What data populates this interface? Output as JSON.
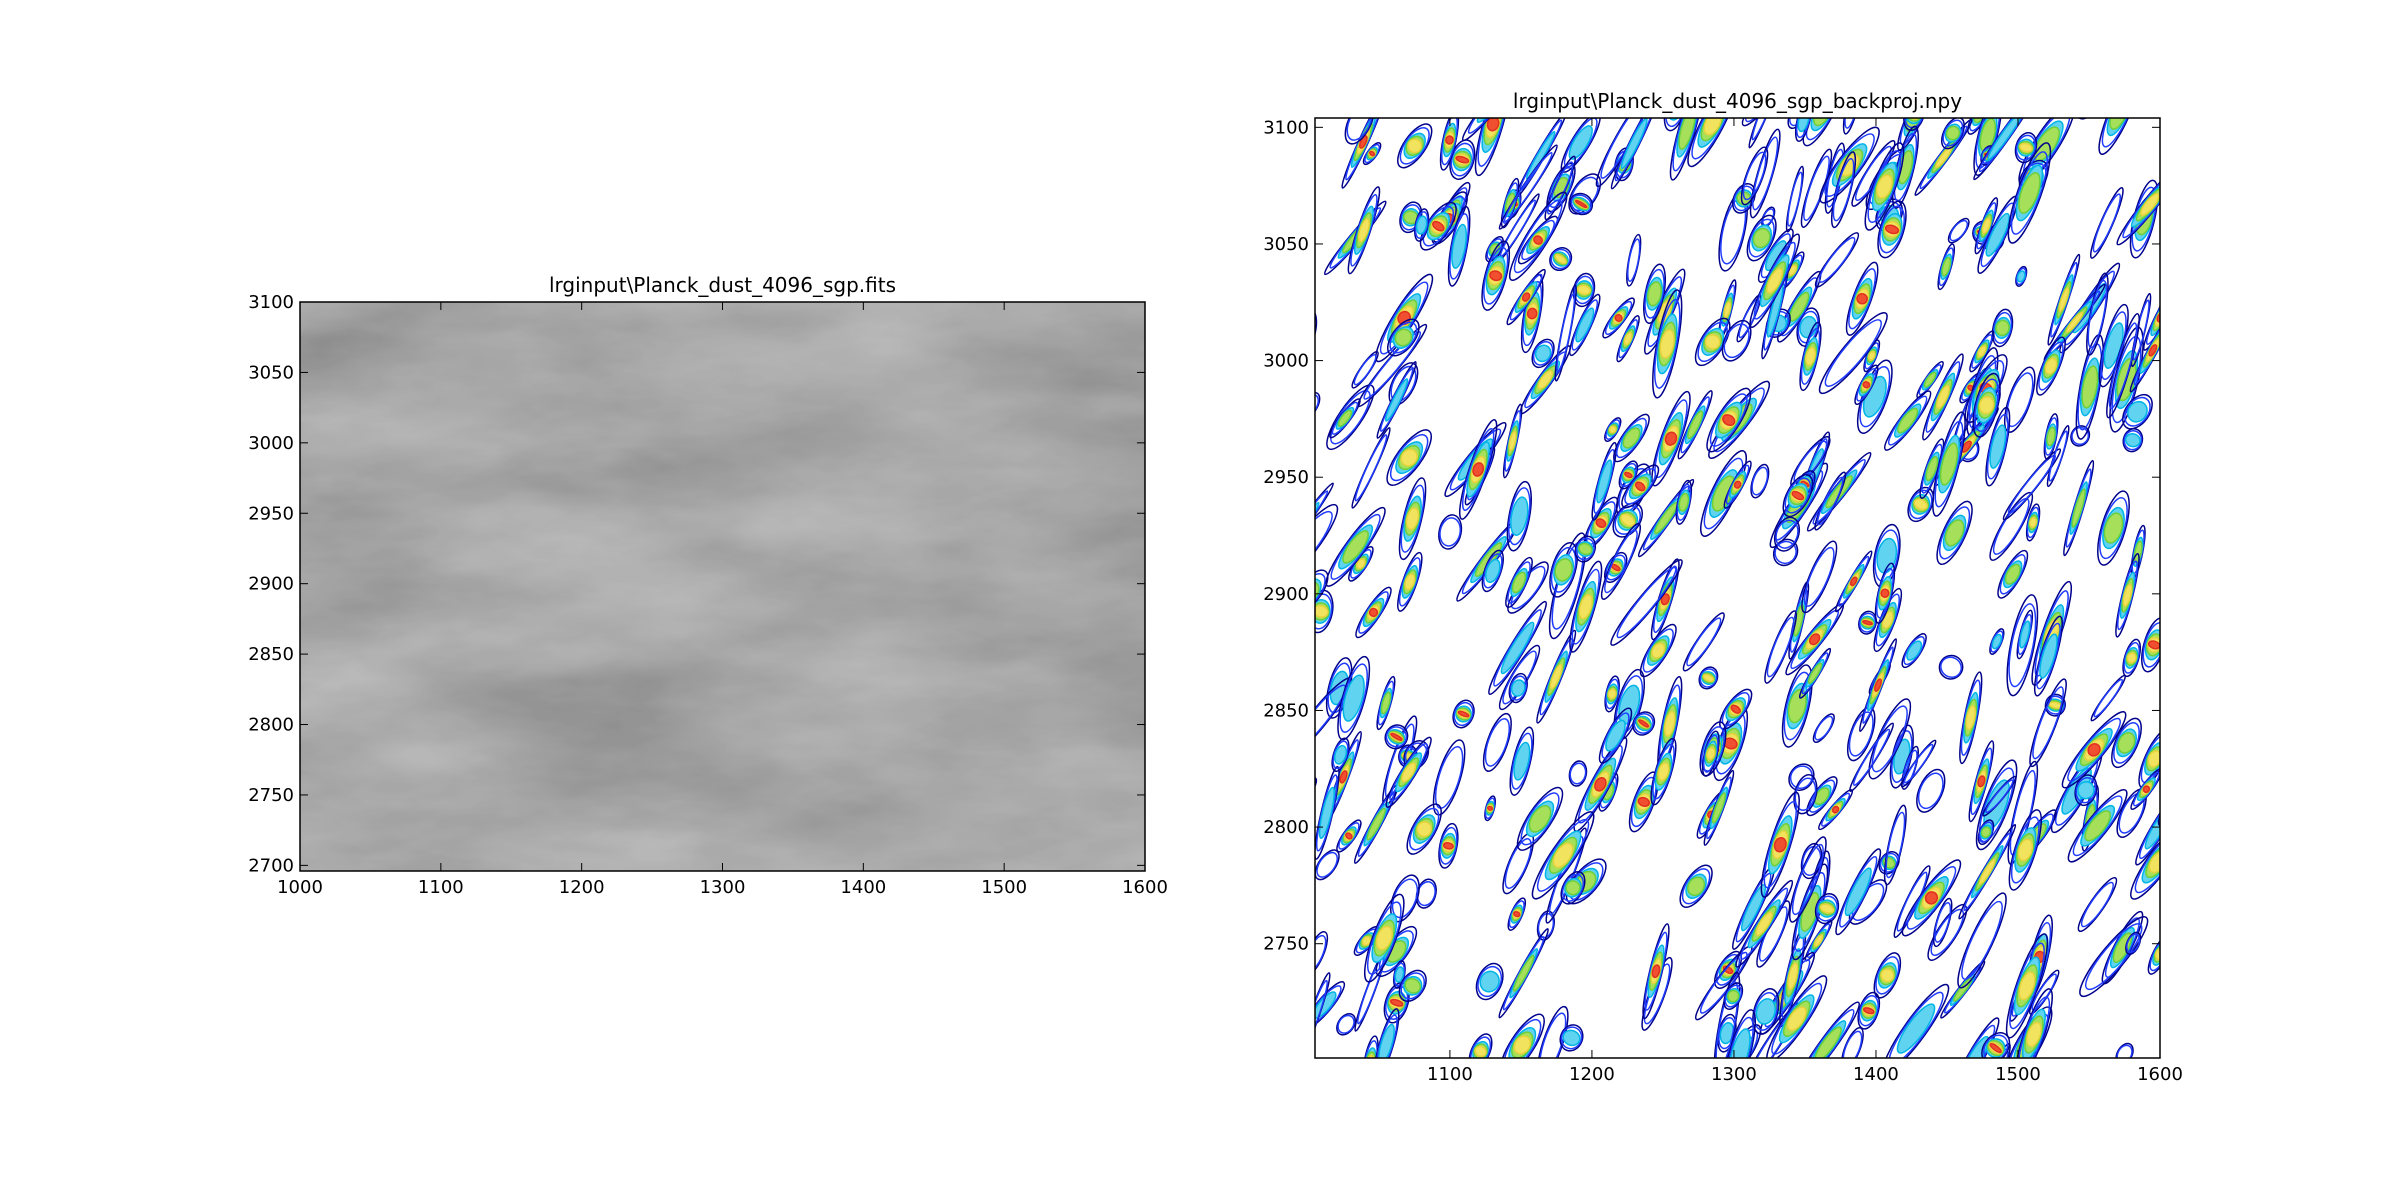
{
  "chart_data": [
    {
      "type": "image",
      "title": "lrginput\\Planck_dust_4096_sgp.fits",
      "xlim": [
        1000,
        1600
      ],
      "xticks": [
        1000,
        1100,
        1200,
        1300,
        1400,
        1500,
        1600
      ],
      "ylim": [
        2696,
        3100
      ],
      "yticks": [
        2700,
        2750,
        2800,
        2850,
        2900,
        2950,
        3000,
        3050,
        3100
      ]
    },
    {
      "type": "contour",
      "title": "lrginput\\Planck_dust_4096_sgp_backproj.npy",
      "xlim": [
        1005,
        1600
      ],
      "xticks": [
        1100,
        1200,
        1300,
        1400,
        1500,
        1600
      ],
      "ylim": [
        2701,
        3104
      ],
      "yticks": [
        2750,
        2800,
        2850,
        2900,
        2950,
        3000,
        3050,
        3100
      ]
    }
  ]
}
